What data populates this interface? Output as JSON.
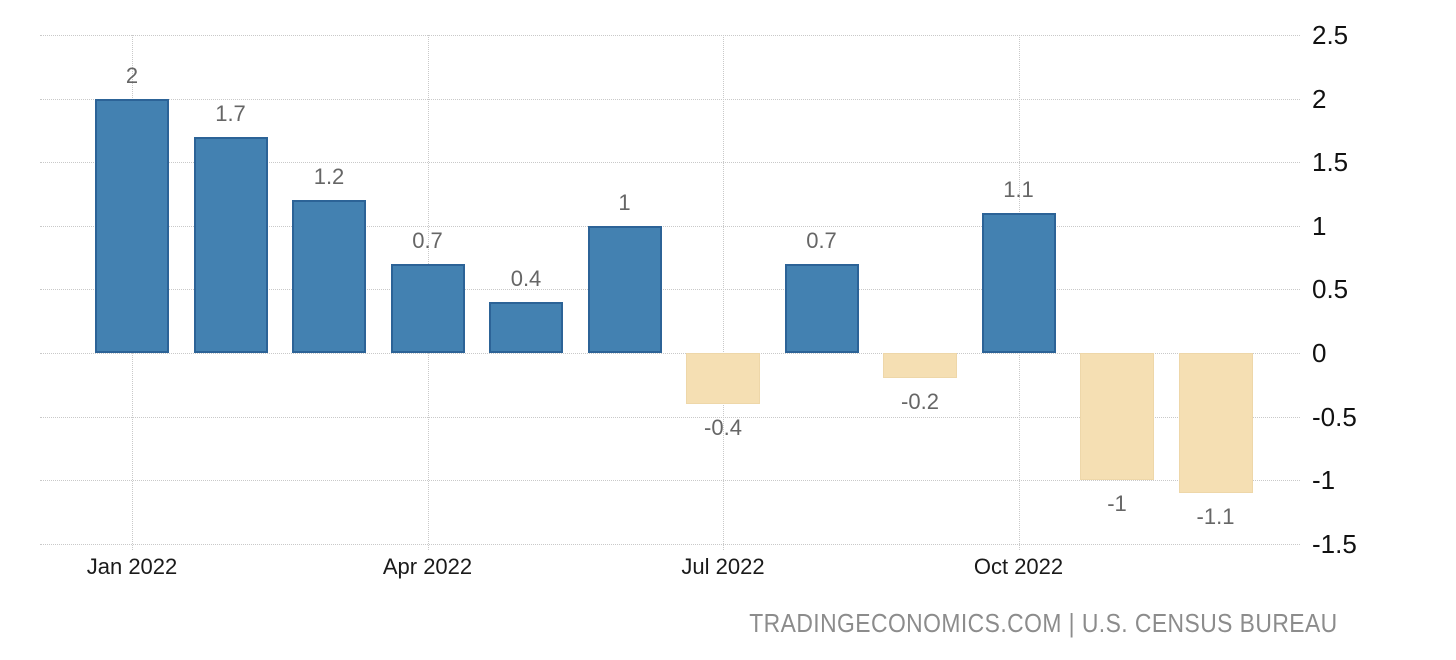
{
  "chart_data": {
    "type": "bar",
    "categories": [
      "Jan 2022",
      "Feb 2022",
      "Mar 2022",
      "Apr 2022",
      "May 2022",
      "Jun 2022",
      "Jul 2022",
      "Aug 2022",
      "Sep 2022",
      "Oct 2022",
      "Nov 2022",
      "Dec 2022"
    ],
    "values": [
      2,
      1.7,
      1.2,
      0.7,
      0.4,
      1,
      -0.4,
      0.7,
      -0.2,
      1.1,
      -1,
      -1.1
    ],
    "bar_labels": [
      "2",
      "1.7",
      "1.2",
      "0.7",
      "0.4",
      "1",
      "-0.4",
      "0.7",
      "-0.2",
      "1.1",
      "-1",
      "-1.1"
    ],
    "x_tick_labels": [
      "Jan 2022",
      "Apr 2022",
      "Jul 2022",
      "Oct 2022"
    ],
    "x_tick_month_index": [
      0,
      3,
      6,
      9
    ],
    "y_ticks": [
      2.5,
      2,
      1.5,
      1,
      0.5,
      0,
      -0.5,
      -1,
      -1.5
    ],
    "y_tick_labels": [
      "2.5",
      "2",
      "1.5",
      "1",
      "0.5",
      "0",
      "-0.5",
      "-1",
      "-1.5"
    ],
    "ylim": [
      -1.5,
      2.5
    ],
    "grid": true,
    "legend": "none",
    "title": "",
    "xlabel": "",
    "ylabel": "",
    "colors": {
      "positive_fill": "#4381b1",
      "positive_border": "#2c6397",
      "negative_fill": "#f5dfb3",
      "negative_border": "#eed7a9",
      "gridline": "#c9c9c9",
      "value_label": "#666666",
      "x_axis_label": "#1a1a1a",
      "y_axis_label": "#111111",
      "attribution": "#8c8c8c",
      "background": "#ffffff"
    }
  },
  "attribution": {
    "text": "TRADINGECONOMICS.COM | U.S. CENSUS BUREAU"
  }
}
